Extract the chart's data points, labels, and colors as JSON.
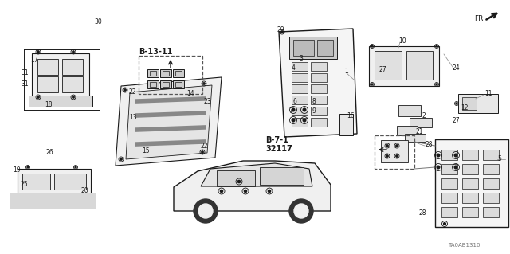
{
  "bg_color": "#ffffff",
  "diagram_id": "TA0AB1310",
  "lc": "#1a1a1a",
  "part_labels": [
    [
      "1",
      432,
      90
    ],
    [
      "2",
      530,
      145
    ],
    [
      "3",
      375,
      74
    ],
    [
      "4",
      366,
      86
    ],
    [
      "5",
      624,
      200
    ],
    [
      "6",
      367,
      128
    ],
    [
      "7",
      362,
      140
    ],
    [
      "8",
      392,
      128
    ],
    [
      "9",
      392,
      140
    ],
    [
      "10",
      500,
      52
    ],
    [
      "11",
      608,
      118
    ],
    [
      "12",
      578,
      135
    ],
    [
      "13",
      162,
      148
    ],
    [
      "14",
      234,
      118
    ],
    [
      "15",
      178,
      190
    ],
    [
      "16",
      435,
      146
    ],
    [
      "17",
      38,
      76
    ],
    [
      "18",
      56,
      132
    ],
    [
      "19",
      16,
      213
    ],
    [
      "20",
      102,
      240
    ],
    [
      "21",
      522,
      165
    ],
    [
      "22",
      161,
      116
    ],
    [
      "22",
      252,
      183
    ],
    [
      "23",
      256,
      128
    ],
    [
      "24",
      567,
      86
    ],
    [
      "25",
      26,
      232
    ],
    [
      "26",
      58,
      192
    ],
    [
      "27",
      476,
      87
    ],
    [
      "27",
      568,
      152
    ],
    [
      "28",
      533,
      182
    ],
    [
      "28",
      525,
      267
    ],
    [
      "29",
      348,
      37
    ],
    [
      "30",
      118,
      28
    ],
    [
      "31",
      26,
      92
    ],
    [
      "31",
      26,
      105
    ]
  ]
}
